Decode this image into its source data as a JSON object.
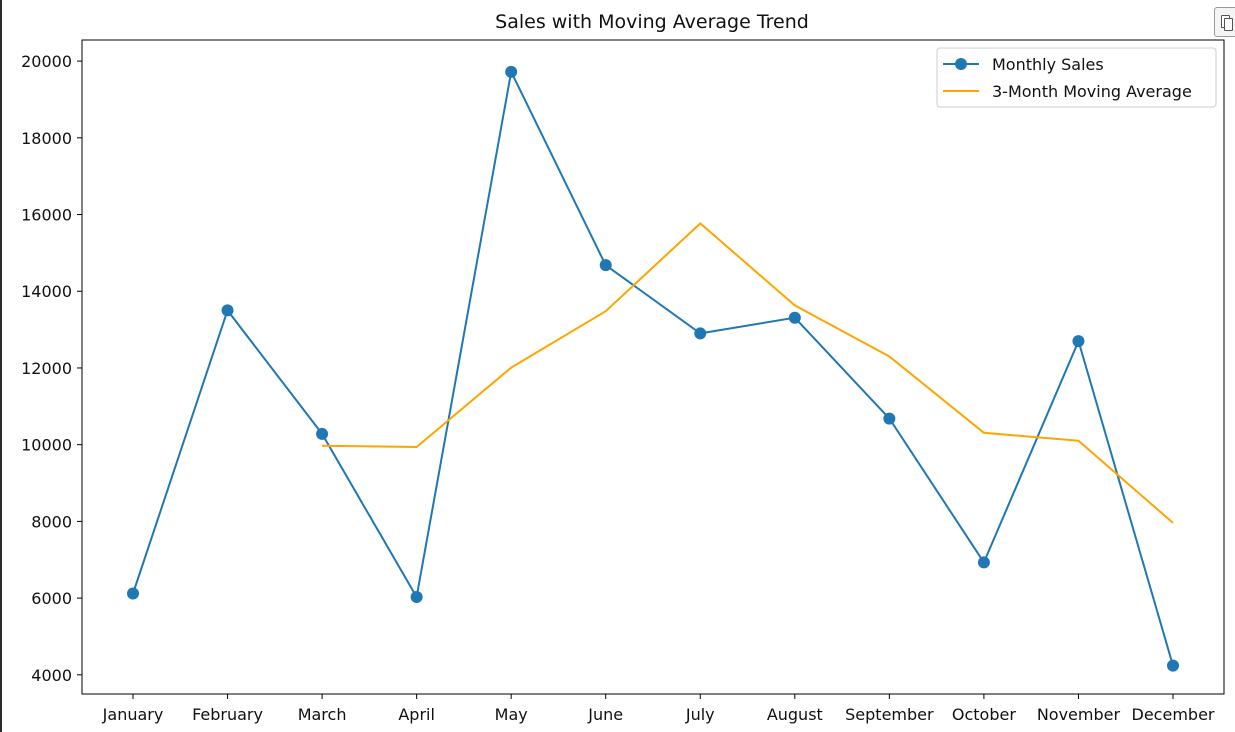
{
  "chart_data": {
    "type": "line",
    "title": "Sales with Moving Average Trend",
    "xlabel": "",
    "ylabel": "",
    "categories": [
      "January",
      "February",
      "March",
      "April",
      "May",
      "June",
      "July",
      "August",
      "September",
      "October",
      "November",
      "December"
    ],
    "yticks": [
      4000,
      6000,
      8000,
      10000,
      12000,
      14000,
      16000,
      18000,
      20000
    ],
    "ylim": [
      3500,
      20550
    ],
    "grid": false,
    "legend_position": "top-right",
    "series": [
      {
        "name": "Monthly Sales",
        "color": "#1f77b4",
        "marker": "circle",
        "values": [
          6120,
          13500,
          10280,
          6030,
          19720,
          14680,
          12900,
          13310,
          10680,
          6930,
          12700,
          4240
        ]
      },
      {
        "name": "3-Month Moving Average",
        "color": "#ffa500",
        "marker": "none",
        "values": [
          null,
          null,
          9970,
          9940,
          12010,
          13480,
          15770,
          13630,
          12300,
          10310,
          10100,
          7960
        ]
      }
    ]
  },
  "toolbar": {
    "copy_icon": "copy-icon"
  }
}
